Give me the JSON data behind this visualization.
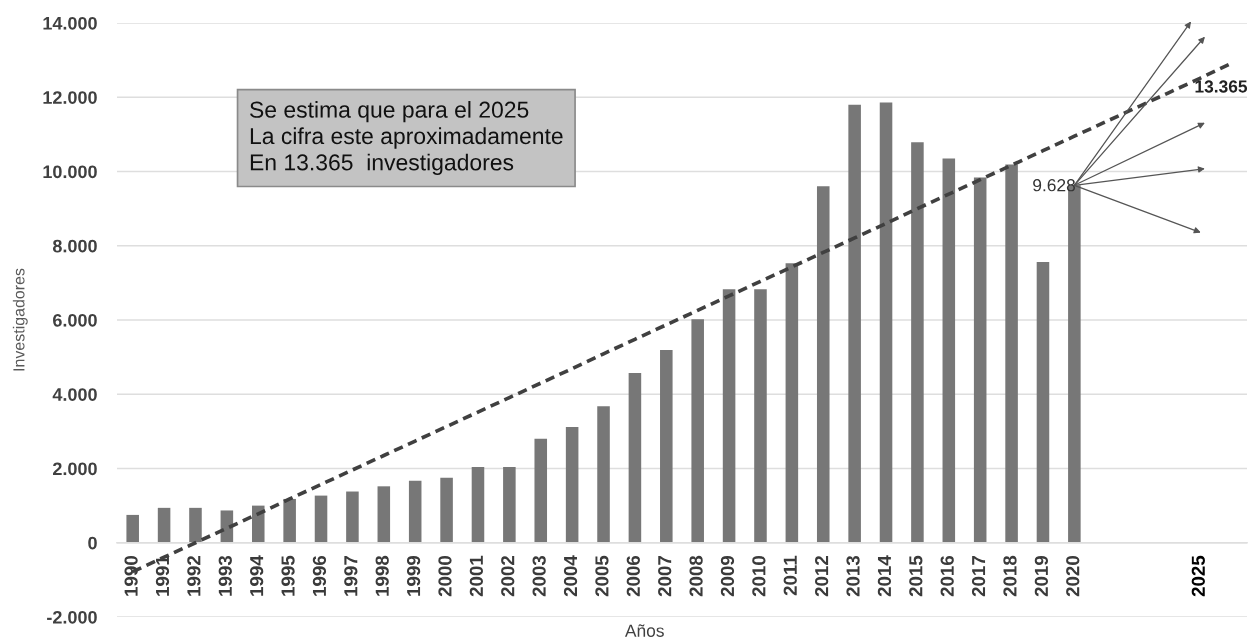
{
  "chart_data": {
    "type": "bar",
    "xlabel": "Años",
    "ylabel": "Investigadores",
    "categories": [
      "1990",
      "1991",
      "1992",
      "1993",
      "1994",
      "1995",
      "1996",
      "1997",
      "1998",
      "1999",
      "2000",
      "2001",
      "2002",
      "2003",
      "2004",
      "2005",
      "2006",
      "2007",
      "2008",
      "2009",
      "2010",
      "2011",
      "2012",
      "2013",
      "2014",
      "2015",
      "2016",
      "2017",
      "2018",
      "2019",
      "2020",
      null,
      null,
      null,
      "2025",
      null
    ],
    "series": [
      {
        "color": "#777777",
        "values": [
          750,
          940,
          940,
          870,
          1000,
          1180,
          1270,
          1380,
          1520,
          1670,
          1750,
          2040,
          2040,
          2800,
          3120,
          3680,
          4570,
          5190,
          6020,
          6830,
          6830,
          7530,
          9600,
          11800,
          11860,
          10790,
          10350,
          9840,
          10190,
          7560,
          9628,
          null,
          null,
          null,
          null,
          null
        ],
        "value_labels": [
          null,
          null,
          null,
          null,
          null,
          null,
          null,
          null,
          null,
          null,
          null,
          null,
          null,
          null,
          null,
          null,
          null,
          null,
          null,
          null,
          null,
          null,
          null,
          null,
          null,
          null,
          null,
          null,
          null,
          null,
          "9.628",
          null,
          null,
          null,
          null,
          null
        ]
      },
      {
        "type": "line",
        "color": "#404040",
        "line_style": "dashed",
        "values": [
          -780,
          -390,
          0,
          390,
          780,
          1180,
          1570,
          1960,
          2350,
          2740,
          3130,
          3520,
          3910,
          4300,
          4690,
          5090,
          5480,
          5870,
          6260,
          6650,
          7040,
          7430,
          7820,
          8210,
          8600,
          9000,
          9390,
          9780,
          10170,
          10560,
          10950,
          11340,
          11730,
          12120,
          12510,
          12910
        ]
      }
    ],
    "ylim": [
      -2000,
      14000
    ],
    "yticks": [
      {
        "value": -2000,
        "label": "-2.000"
      },
      0,
      {
        "value": 2000,
        "label": "2.000"
      },
      {
        "value": 4000,
        "label": "4.000"
      },
      {
        "value": 6000,
        "label": "6.000"
      },
      {
        "value": 8000,
        "label": "8.000"
      },
      {
        "value": 10000,
        "label": "10.000"
      },
      {
        "value": 12000,
        "label": "12.000"
      },
      {
        "value": 14000,
        "label": "14.000"
      }
    ],
    "grid": "y",
    "annotations": [
      "Se estima que para el 2025\nLa cifra este aproximadamente\nEn 13.365  investigadores",
      "13.365"
    ]
  }
}
